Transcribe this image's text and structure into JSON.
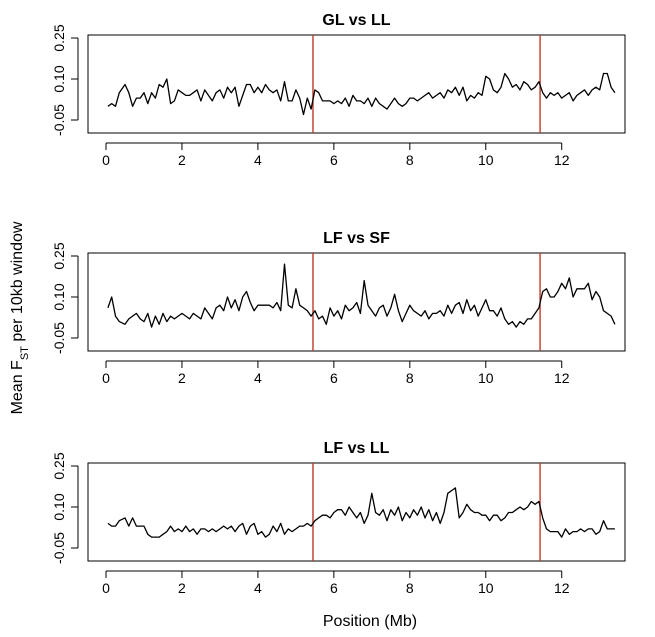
{
  "figure": {
    "ylabel_main": "Mean F",
    "ylabel_sub": "ST",
    "ylabel_tail": " per 10kb window",
    "xlabel": "Position (Mb)",
    "marker_color": "#c0392b",
    "line_color": "#000000"
  },
  "chart_data": [
    {
      "type": "line",
      "title": "GL  vs  LL",
      "xlabel": "Position (Mb)",
      "ylabel": "Mean FST per 10kb window",
      "xlim": [
        0,
        13.5
      ],
      "ylim": [
        -0.05,
        0.25
      ],
      "xticks": [
        0,
        2,
        4,
        6,
        8,
        10,
        12
      ],
      "yticks": [
        -0.05,
        0.1,
        0.25
      ],
      "ytick_labels": [
        "-0.05",
        "0.10",
        "0.25"
      ],
      "vertical_markers": [
        5.45,
        11.43
      ],
      "series": [
        {
          "x": [
            0.05,
            0.15,
            0.25,
            0.35,
            0.5,
            0.6,
            0.7,
            0.8,
            0.9,
            1.0,
            1.1,
            1.2,
            1.3,
            1.4,
            1.5,
            1.6,
            1.7,
            1.8,
            1.9,
            2.0,
            2.1,
            2.2,
            2.3,
            2.4,
            2.5,
            2.6,
            2.7,
            2.8,
            2.9,
            3.0,
            3.1,
            3.2,
            3.3,
            3.4,
            3.5,
            3.6,
            3.7,
            3.8,
            3.9,
            4.0,
            4.1,
            4.2,
            4.3,
            4.4,
            4.5,
            4.6,
            4.7,
            4.8,
            4.9,
            5.0,
            5.1,
            5.2,
            5.3,
            5.4,
            5.5,
            5.6,
            5.7,
            5.8,
            5.9,
            6.0,
            6.1,
            6.2,
            6.3,
            6.4,
            6.5,
            6.6,
            6.7,
            6.8,
            6.9,
            7.0,
            7.1,
            7.2,
            7.3,
            7.4,
            7.5,
            7.6,
            7.7,
            7.8,
            7.9,
            8.0,
            8.1,
            8.2,
            8.3,
            8.4,
            8.5,
            8.6,
            8.7,
            8.8,
            8.9,
            9.0,
            9.1,
            9.2,
            9.3,
            9.4,
            9.5,
            9.6,
            9.7,
            9.8,
            9.9,
            10.0,
            10.1,
            10.2,
            10.3,
            10.4,
            10.5,
            10.6,
            10.7,
            10.8,
            10.9,
            11.0,
            11.1,
            11.2,
            11.3,
            11.4,
            11.5,
            11.6,
            11.7,
            11.8,
            11.9,
            12.0,
            12.1,
            12.2,
            12.3,
            12.4,
            12.5,
            12.6,
            12.7,
            12.8,
            12.9,
            13.0,
            13.1,
            13.2,
            13.3,
            13.4
          ],
          "y": [
            0.0,
            0.01,
            0.0,
            0.05,
            0.08,
            0.05,
            0.0,
            0.03,
            0.03,
            0.05,
            0.01,
            0.05,
            0.03,
            0.08,
            0.07,
            0.1,
            0.01,
            0.02,
            0.06,
            0.05,
            0.04,
            0.04,
            0.05,
            0.06,
            0.02,
            0.06,
            0.04,
            0.02,
            0.05,
            0.06,
            0.03,
            0.07,
            0.05,
            0.07,
            0.0,
            0.04,
            0.08,
            0.08,
            0.05,
            0.07,
            0.05,
            0.08,
            0.06,
            0.05,
            0.06,
            0.02,
            0.09,
            0.02,
            0.02,
            0.06,
            0.03,
            -0.03,
            0.03,
            -0.01,
            0.06,
            0.05,
            0.02,
            0.02,
            0.02,
            0.01,
            0.02,
            0.01,
            0.03,
            0.0,
            0.04,
            0.02,
            0.02,
            0.01,
            0.03,
            0.0,
            0.03,
            0.01,
            0.0,
            -0.01,
            0.01,
            0.03,
            0.01,
            0.0,
            0.01,
            0.03,
            0.03,
            0.02,
            0.03,
            0.04,
            0.05,
            0.03,
            0.04,
            0.05,
            0.03,
            0.06,
            0.05,
            0.07,
            0.04,
            0.07,
            0.02,
            0.04,
            0.03,
            0.05,
            0.04,
            0.11,
            0.1,
            0.06,
            0.05,
            0.07,
            0.12,
            0.1,
            0.07,
            0.08,
            0.06,
            0.09,
            0.08,
            0.06,
            0.07,
            0.09,
            0.05,
            0.03,
            0.05,
            0.04,
            0.05,
            0.03,
            0.04,
            0.05,
            0.02,
            0.04,
            0.05,
            0.06,
            0.04,
            0.06,
            0.07,
            0.06,
            0.12,
            0.12,
            0.07,
            0.05
          ]
        }
      ]
    },
    {
      "type": "line",
      "title": "LF  vs  SF",
      "xlabel": "Position (Mb)",
      "ylabel": "Mean FST per 10kb window",
      "xlim": [
        0,
        13.5
      ],
      "ylim": [
        -0.05,
        0.25
      ],
      "xticks": [
        0,
        2,
        4,
        6,
        8,
        10,
        12
      ],
      "yticks": [
        -0.05,
        0.1,
        0.25
      ],
      "ytick_labels": [
        "-0.05",
        "0.10",
        "0.25"
      ],
      "vertical_markers": [
        5.45,
        11.43
      ],
      "series": [
        {
          "x": [
            0.05,
            0.15,
            0.25,
            0.35,
            0.5,
            0.6,
            0.7,
            0.8,
            0.9,
            1.0,
            1.1,
            1.2,
            1.3,
            1.4,
            1.5,
            1.6,
            1.7,
            1.8,
            1.9,
            2.0,
            2.1,
            2.2,
            2.3,
            2.4,
            2.5,
            2.6,
            2.7,
            2.8,
            2.9,
            3.0,
            3.1,
            3.2,
            3.3,
            3.4,
            3.5,
            3.6,
            3.7,
            3.8,
            3.9,
            4.0,
            4.1,
            4.2,
            4.3,
            4.4,
            4.5,
            4.6,
            4.7,
            4.8,
            4.9,
            5.0,
            5.1,
            5.2,
            5.3,
            5.4,
            5.5,
            5.6,
            5.7,
            5.8,
            5.9,
            6.0,
            6.1,
            6.2,
            6.3,
            6.4,
            6.5,
            6.6,
            6.7,
            6.8,
            6.9,
            7.0,
            7.1,
            7.2,
            7.3,
            7.4,
            7.5,
            7.6,
            7.7,
            7.8,
            7.9,
            8.0,
            8.1,
            8.2,
            8.3,
            8.4,
            8.5,
            8.6,
            8.7,
            8.8,
            8.9,
            9.0,
            9.1,
            9.2,
            9.3,
            9.4,
            9.5,
            9.6,
            9.7,
            9.8,
            9.9,
            10.0,
            10.1,
            10.2,
            10.3,
            10.4,
            10.5,
            10.6,
            10.7,
            10.8,
            10.9,
            11.0,
            11.1,
            11.2,
            11.3,
            11.4,
            11.5,
            11.6,
            11.7,
            11.8,
            11.9,
            12.0,
            12.1,
            12.2,
            12.3,
            12.4,
            12.5,
            12.6,
            12.7,
            12.8,
            12.9,
            13.0,
            13.1,
            13.2,
            13.3,
            13.4
          ],
          "y": [
            0.06,
            0.1,
            0.03,
            0.01,
            0.0,
            0.02,
            0.03,
            0.04,
            0.02,
            0.01,
            0.04,
            -0.01,
            0.03,
            0.0,
            0.04,
            0.01,
            0.03,
            0.02,
            0.03,
            0.04,
            0.03,
            0.02,
            0.04,
            0.03,
            0.02,
            0.06,
            0.04,
            0.02,
            0.06,
            0.07,
            0.05,
            0.1,
            0.06,
            0.09,
            0.05,
            0.1,
            0.12,
            0.08,
            0.05,
            0.07,
            0.07,
            0.07,
            0.07,
            0.06,
            0.08,
            0.05,
            0.22,
            0.07,
            0.06,
            0.13,
            0.07,
            0.06,
            0.05,
            0.03,
            0.05,
            0.02,
            0.03,
            0.0,
            0.06,
            0.03,
            0.05,
            0.02,
            0.07,
            0.05,
            0.06,
            0.08,
            0.04,
            0.16,
            0.07,
            0.05,
            0.03,
            0.06,
            0.07,
            0.03,
            0.06,
            0.11,
            0.05,
            0.01,
            0.04,
            0.07,
            0.05,
            0.04,
            0.03,
            0.05,
            0.02,
            0.04,
            0.04,
            0.05,
            0.03,
            0.07,
            0.04,
            0.07,
            0.08,
            0.04,
            0.09,
            0.05,
            0.07,
            0.03,
            0.06,
            0.09,
            0.05,
            0.05,
            0.03,
            0.06,
            0.02,
            0.0,
            0.01,
            -0.01,
            0.01,
            0.0,
            0.02,
            0.02,
            0.04,
            0.06,
            0.12,
            0.13,
            0.1,
            0.1,
            0.12,
            0.15,
            0.13,
            0.17,
            0.1,
            0.13,
            0.13,
            0.13,
            0.15,
            0.09,
            0.12,
            0.1,
            0.05,
            0.04,
            0.03,
            0.0
          ]
        }
      ]
    },
    {
      "type": "line",
      "title": "LF  vs  LL",
      "xlabel": "Position (Mb)",
      "ylabel": "Mean FST per 10kb window",
      "xlim": [
        0,
        13.5
      ],
      "ylim": [
        -0.05,
        0.25
      ],
      "xticks": [
        0,
        2,
        4,
        6,
        8,
        10,
        12
      ],
      "yticks": [
        -0.05,
        0.1,
        0.25
      ],
      "ytick_labels": [
        "-0.05",
        "0.10",
        "0.25"
      ],
      "vertical_markers": [
        5.45,
        11.43
      ],
      "series": [
        {
          "x": [
            0.05,
            0.15,
            0.25,
            0.35,
            0.5,
            0.6,
            0.7,
            0.8,
            0.9,
            1.0,
            1.1,
            1.2,
            1.3,
            1.4,
            1.5,
            1.6,
            1.7,
            1.8,
            1.9,
            2.0,
            2.1,
            2.2,
            2.3,
            2.4,
            2.5,
            2.6,
            2.7,
            2.8,
            2.9,
            3.0,
            3.1,
            3.2,
            3.3,
            3.4,
            3.5,
            3.6,
            3.7,
            3.8,
            3.9,
            4.0,
            4.1,
            4.2,
            4.3,
            4.4,
            4.5,
            4.6,
            4.7,
            4.8,
            4.9,
            5.0,
            5.1,
            5.2,
            5.3,
            5.4,
            5.5,
            5.6,
            5.7,
            5.8,
            5.9,
            6.0,
            6.1,
            6.2,
            6.3,
            6.4,
            6.5,
            6.6,
            6.7,
            6.8,
            6.9,
            7.0,
            7.1,
            7.2,
            7.3,
            7.4,
            7.5,
            7.6,
            7.7,
            7.8,
            7.9,
            8.0,
            8.1,
            8.2,
            8.3,
            8.4,
            8.5,
            8.6,
            8.7,
            8.8,
            8.9,
            9.0,
            9.1,
            9.2,
            9.3,
            9.4,
            9.5,
            9.6,
            9.7,
            9.8,
            9.9,
            10.0,
            10.1,
            10.2,
            10.3,
            10.4,
            10.5,
            10.6,
            10.7,
            10.8,
            10.9,
            11.0,
            11.1,
            11.2,
            11.3,
            11.4,
            11.5,
            11.6,
            11.7,
            11.8,
            11.9,
            12.0,
            12.1,
            12.2,
            12.3,
            12.4,
            12.5,
            12.6,
            12.7,
            12.8,
            12.9,
            13.0,
            13.1,
            13.2,
            13.3,
            13.4
          ],
          "y": [
            0.04,
            0.03,
            0.03,
            0.05,
            0.06,
            0.03,
            0.06,
            0.03,
            0.03,
            0.03,
            0.0,
            -0.01,
            -0.01,
            -0.01,
            0.0,
            0.01,
            0.03,
            0.01,
            0.02,
            0.01,
            0.03,
            0.01,
            0.02,
            0.0,
            0.02,
            0.02,
            0.01,
            0.02,
            0.01,
            0.02,
            0.03,
            0.02,
            0.03,
            0.01,
            0.03,
            0.04,
            0.0,
            0.03,
            0.04,
            0.0,
            0.01,
            -0.01,
            0.0,
            0.03,
            0.01,
            0.04,
            0.0,
            0.02,
            0.01,
            0.02,
            0.03,
            0.03,
            0.04,
            0.03,
            0.05,
            0.06,
            0.07,
            0.07,
            0.06,
            0.08,
            0.09,
            0.09,
            0.07,
            0.1,
            0.08,
            0.06,
            0.08,
            0.04,
            0.07,
            0.15,
            0.08,
            0.07,
            0.09,
            0.05,
            0.09,
            0.07,
            0.1,
            0.05,
            0.08,
            0.06,
            0.09,
            0.07,
            0.1,
            0.06,
            0.09,
            0.05,
            0.08,
            0.04,
            0.08,
            0.15,
            0.16,
            0.17,
            0.06,
            0.08,
            0.11,
            0.09,
            0.08,
            0.08,
            0.07,
            0.07,
            0.05,
            0.07,
            0.07,
            0.05,
            0.06,
            0.08,
            0.08,
            0.09,
            0.1,
            0.09,
            0.1,
            0.12,
            0.11,
            0.12,
            0.06,
            0.02,
            0.01,
            0.01,
            0.01,
            -0.01,
            0.02,
            0.0,
            0.01,
            0.01,
            0.02,
            0.01,
            0.02,
            0.02,
            0.0,
            0.01,
            0.05,
            0.02,
            0.02,
            0.02
          ]
        }
      ]
    }
  ]
}
